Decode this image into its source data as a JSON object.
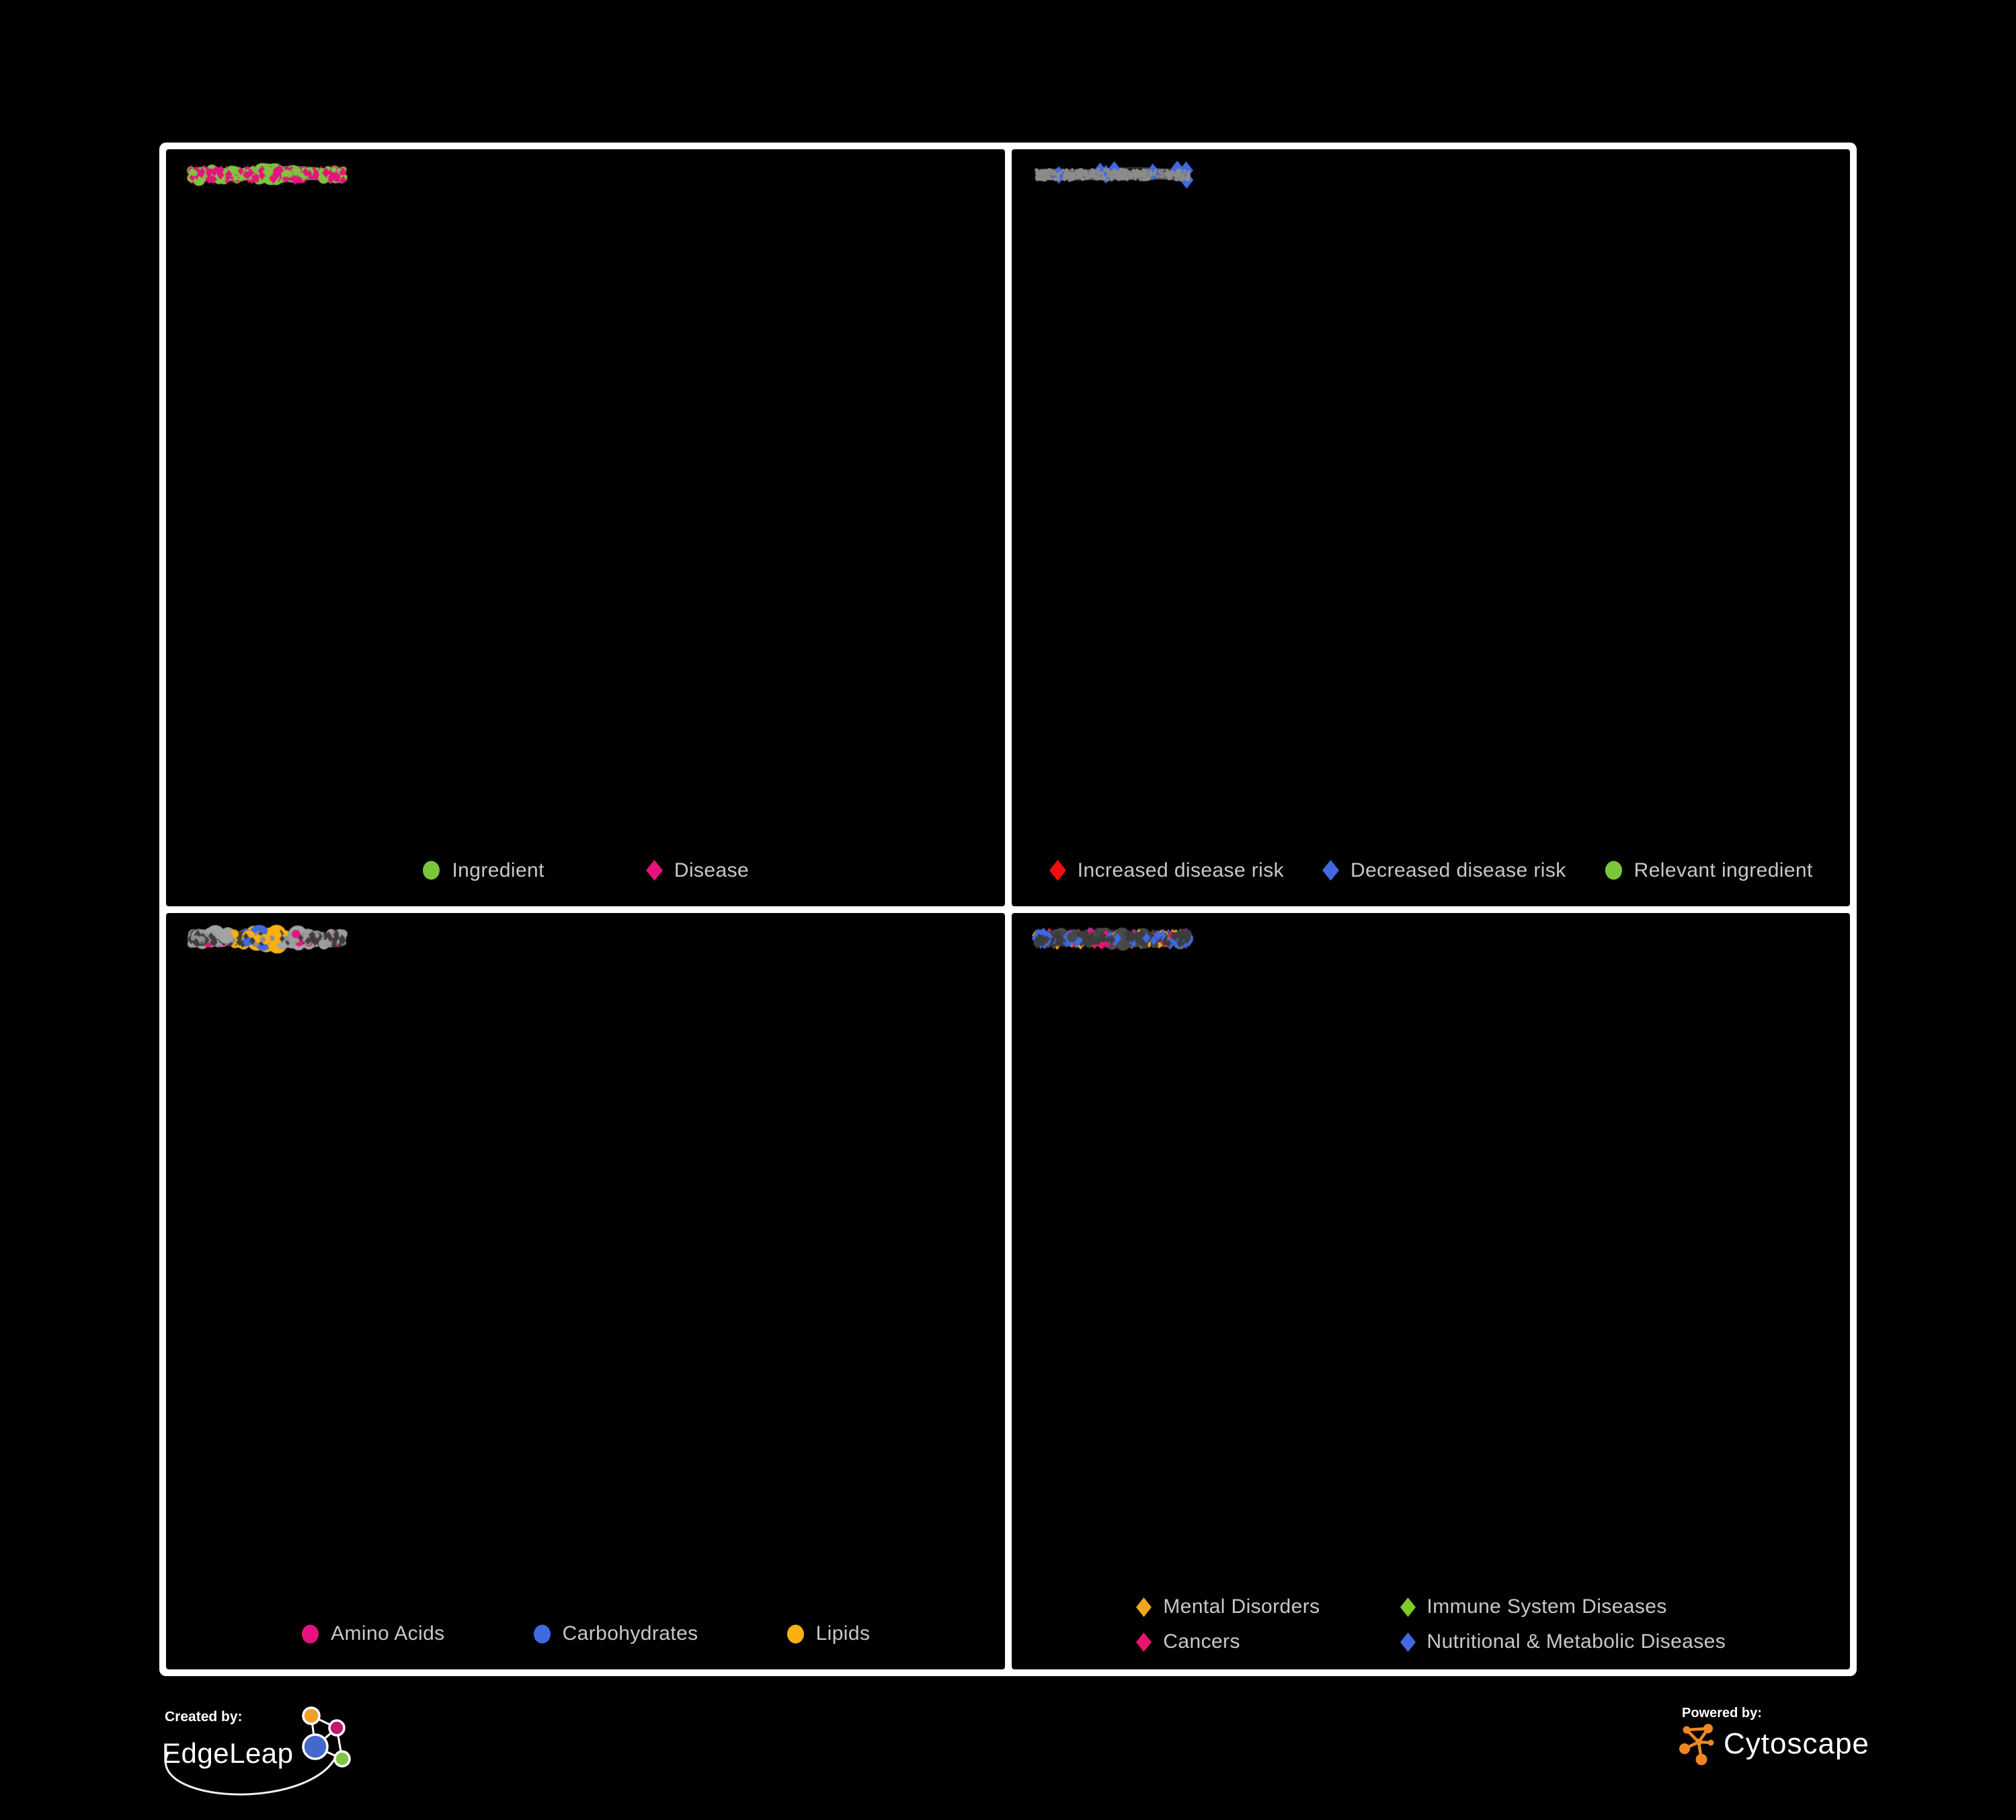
{
  "page": {
    "background": "#000000",
    "frame_color": "#FFFFFF"
  },
  "footer": {
    "created_by": {
      "label": "Created by:",
      "brand": "EdgeLeap",
      "glyph_colors": {
        "orange": "#F0A028",
        "magenta": "#C2186E",
        "blue": "#4468CC",
        "green": "#7DC63F"
      }
    },
    "powered_by": {
      "label": "Powered by:",
      "brand": "Cytoscape",
      "glyph_color": "#EE8722"
    }
  },
  "chart_data": [
    {
      "id": "ingredient-disease",
      "type": "network",
      "panel": "top-left",
      "description": "Ingredient-disease association network: ingredients drawn as green circles (hubs larger), diseases as small pink diamonds on branching dendrites.",
      "layout_variant": "A",
      "layout_seed": 7,
      "style_seed": 101,
      "legend_reserve": 130,
      "edge": {
        "color": "#787878",
        "alpha": 0.9,
        "width": 2.6,
        "curve": 0.1
      },
      "node_colors": {
        "ingredient": "#7DC63C",
        "disease": "#E6137F"
      },
      "legend": [
        {
          "label": "Ingredient",
          "shape": "circle",
          "color": "#7DC63C"
        },
        {
          "label": "Disease",
          "shape": "diamond",
          "color": "#E6137F"
        }
      ]
    },
    {
      "id": "disease-risk",
      "type": "network",
      "panel": "top-right",
      "description": "Same network rendered with tiny grey nodes; highlighted diamonds mark increased (red), decreased (blue) or unchanged (silver) disease risk and green circles mark relevant ingredients.",
      "layout_variant": "A",
      "layout_seed": 7,
      "style_seed": 202,
      "legend_reserve": 130,
      "edge": {
        "color": "#6F6F6F",
        "alpha": 0.8,
        "width": 1.3,
        "curve": 0.07
      },
      "base_node_color": "#8C8C8C",
      "highlight": {
        "red": {
          "color": "#F50D0D",
          "count": 38
        },
        "blue": {
          "color": "#4169E1",
          "count": 9
        },
        "silver": {
          "color": "#ABABAB",
          "count": 8
        },
        "green": {
          "color": "#7DC63C",
          "count": 30
        }
      },
      "legend": [
        {
          "label": "Increased disease risk",
          "shape": "diamond",
          "color": "#F50D0D"
        },
        {
          "label": "Decreased disease risk",
          "shape": "diamond",
          "color": "#4169E1"
        },
        {
          "label": "Relevant ingredient",
          "shape": "circle",
          "color": "#7DC63C"
        }
      ]
    },
    {
      "id": "macronutrients",
      "type": "network",
      "panel": "bottom-left",
      "description": "Ingredient network with macronutrient classes highlighted on ingredient circles (pink amino acids, blue carbohydrates, orange lipids); diseases are small dark grey diamonds.",
      "layout_variant": "B",
      "layout_seed": 23,
      "style_seed": 303,
      "legend_reserve": 115,
      "edge": {
        "color": "#747474",
        "alpha": 0.5,
        "width": 1.7,
        "curve": 0.08
      },
      "base_disease_color": "#3E3E3E",
      "base_ingredient_color": "#A3A3A3",
      "highlight": {
        "amino_acids": {
          "color": "#E6137F",
          "count": 19
        },
        "carbohydrates": {
          "color": "#4169E1",
          "count": 15
        },
        "lipids": {
          "color": "#F8B013",
          "count": 58
        }
      },
      "legend": [
        {
          "label": "Amino Acids",
          "shape": "circle",
          "color": "#E6137F"
        },
        {
          "label": "Carbohydrates",
          "shape": "circle",
          "color": "#4169E1"
        },
        {
          "label": "Lipids",
          "shape": "circle",
          "color": "#F8B013"
        }
      ]
    },
    {
      "id": "disease-classes",
      "type": "network",
      "panel": "bottom-right",
      "description": "Disease network in dark grey with disease classes highlighted as coloured diamonds: orange mental disorders (left cluster), pink cancers (centre), blue nutritional & metabolic diseases (right), green immune system diseases (scattered).",
      "layout_variant": "B",
      "layout_seed": 23,
      "style_seed": 404,
      "legend_reserve": 155,
      "edge": {
        "color": "#6C6C6C",
        "alpha": 0.5,
        "width": 1.5,
        "curve": 0.08
      },
      "base_node_color": "#3C3C3C",
      "highlight": {
        "mental": {
          "color": "#F0A61E",
          "count": 95
        },
        "immune": {
          "color": "#7FCC29",
          "count": 9
        },
        "cancers": {
          "color": "#E8156F",
          "count": 60
        },
        "metabolic": {
          "color": "#4169E1",
          "count": 85
        }
      },
      "legend": [
        {
          "label": "Mental Disorders",
          "shape": "diamond",
          "color": "#F0A61E"
        },
        {
          "label": "Immune System Diseases",
          "shape": "diamond",
          "color": "#7FCC29"
        },
        {
          "label": "Cancers",
          "shape": "diamond",
          "color": "#E8156F"
        },
        {
          "label": "Nutritional & Metabolic Diseases",
          "shape": "diamond",
          "color": "#4169E1"
        }
      ]
    }
  ]
}
